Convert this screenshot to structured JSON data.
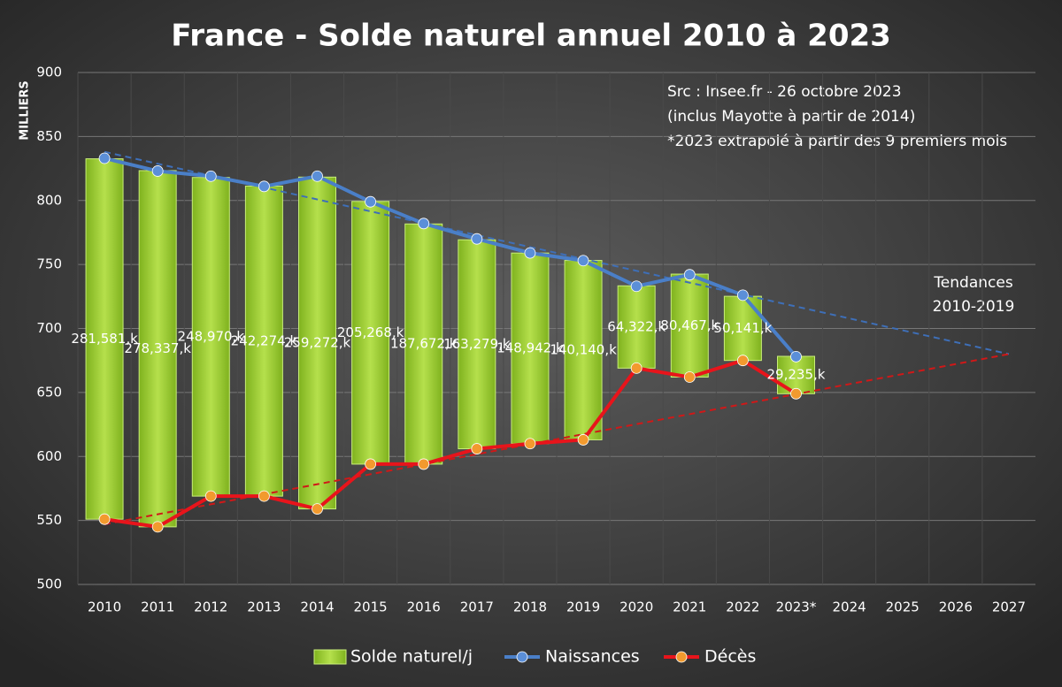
{
  "chart_data": {
    "type": "floating-bar-line",
    "title": "France - Solde naturel annuel 2010 à 2023",
    "y_label": "MILLIERS",
    "categories": [
      "2010",
      "2011",
      "2012",
      "2013",
      "2014",
      "2015",
      "2016",
      "2017",
      "2018",
      "2019",
      "2020",
      "2021",
      "2022",
      "2023*",
      "2024",
      "2025",
      "2026",
      "2027"
    ],
    "ylim": [
      500,
      900
    ],
    "yticks": [
      500,
      550,
      600,
      650,
      700,
      750,
      800,
      850,
      900
    ],
    "grid": true,
    "bars": {
      "name": "Solde naturel/j",
      "color": "#9fd13a",
      "base_series": 1,
      "values": [
        281.581,
        278.337,
        248.97,
        242.274,
        259.272,
        205.268,
        187.672,
        163.279,
        148.942,
        140.14,
        64.322,
        80.467,
        50.141,
        29.235,
        null,
        null,
        null,
        null
      ],
      "value_labels": [
        "281,581,k",
        "278,337,k",
        "248,970,k",
        "242,274,k",
        "259,272,k",
        "205,268,k",
        "187,672,k",
        "163,279,k",
        "148,942,k",
        "140,140,k",
        "64,322,k",
        "80,467,k",
        "50,141,k",
        "29,235,k",
        null,
        null,
        null,
        null
      ]
    },
    "series": [
      {
        "name": "Naissances",
        "color": "#4a7fc8",
        "marker": "#5b8fd8",
        "values": [
          833,
          823,
          819,
          811,
          819,
          799,
          782,
          770,
          759,
          753,
          733,
          742,
          726,
          678,
          null,
          null,
          null,
          null
        ]
      },
      {
        "name": "Décès",
        "color": "#e8141b",
        "marker": "#f29a2e",
        "values": [
          551,
          545,
          569,
          569,
          559,
          594,
          594,
          606,
          610,
          613,
          669,
          662,
          675,
          649,
          null,
          null,
          null,
          null
        ]
      }
    ],
    "trends": [
      {
        "color": "#3e6fb8",
        "start": 838,
        "end": 680
      },
      {
        "color": "#d01818",
        "start": 547,
        "end": 680
      }
    ],
    "annotations": [
      "Src : Insee.fr - 26 octobre 2023",
      "(inclus Mayotte à partir de 2014)",
      "*2023 extrapolé à partir des 9 premiers mois"
    ],
    "trend_label": [
      "Tendances",
      "2010-2019"
    ]
  }
}
